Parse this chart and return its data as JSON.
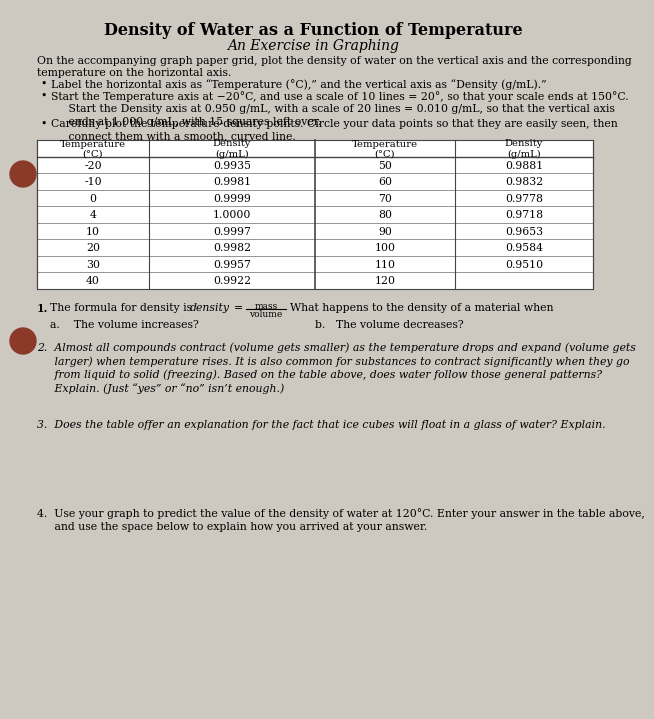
{
  "title": "Density of Water as a Function of Temperature",
  "subtitle": "An Exercise in Graphing",
  "bg_color": "#cdc8c0",
  "intro_text": "On the accompanying graph paper grid, plot the density of water on the vertical axis and the corresponding\ntemperature on the horizontal axis.",
  "bullet1": "Label the horizontal axis as “Temperature (°C),” and the vertical axis as “Density (g/mL).”",
  "bullet2": "Start the Temperature axis at −20°C, and use a scale of 10 lines = 20°, so that your scale ends at 150°C.\n     Start the Density axis at 0.950 g/mL, with a scale of 20 lines = 0.010 g/mL, so that the vertical axis\n     ends at 1.000 g/mL, with 15 squares left over.",
  "bullet3": "Carefully plot the temperature-density points. Circle your data points so that they are easily seen, then\n     connect them with a smooth, curved line.",
  "table_data_left": [
    [
      "-20",
      "0.9935"
    ],
    [
      "-10",
      "0.9981"
    ],
    [
      "0",
      "0.9999"
    ],
    [
      "4",
      "1.0000"
    ],
    [
      "10",
      "0.9997"
    ],
    [
      "20",
      "0.9982"
    ],
    [
      "30",
      "0.9957"
    ],
    [
      "40",
      "0.9922"
    ]
  ],
  "table_data_right": [
    [
      "50",
      "0.9881"
    ],
    [
      "60",
      "0.9832"
    ],
    [
      "70",
      "0.9778"
    ],
    [
      "80",
      "0.9718"
    ],
    [
      "90",
      "0.9653"
    ],
    [
      "100",
      "0.9584"
    ],
    [
      "110",
      "0.9510"
    ],
    [
      "120",
      ""
    ]
  ],
  "q2_text": "2.  Almost all compounds contract (volume gets smaller) as the temperature drops and expand (volume gets\n     larger) when temperature rises. It is also common for substances to contract significantly when they go\n     from liquid to solid (freezing). Based on the table above, does water follow those general patterns?\n     Explain. (Just “yes” or “no” isn’t enough.)",
  "q3_text": "3.  Does the table offer an explanation for the fact that ice cubes will float in a glass of water? Explain.",
  "q4_text": "4.  Use your graph to predict the value of the density of water at 120°C. Enter your answer in the table above,\n     and use the space below to explain how you arrived at your answer.",
  "circle_color": "#8B3A2A"
}
